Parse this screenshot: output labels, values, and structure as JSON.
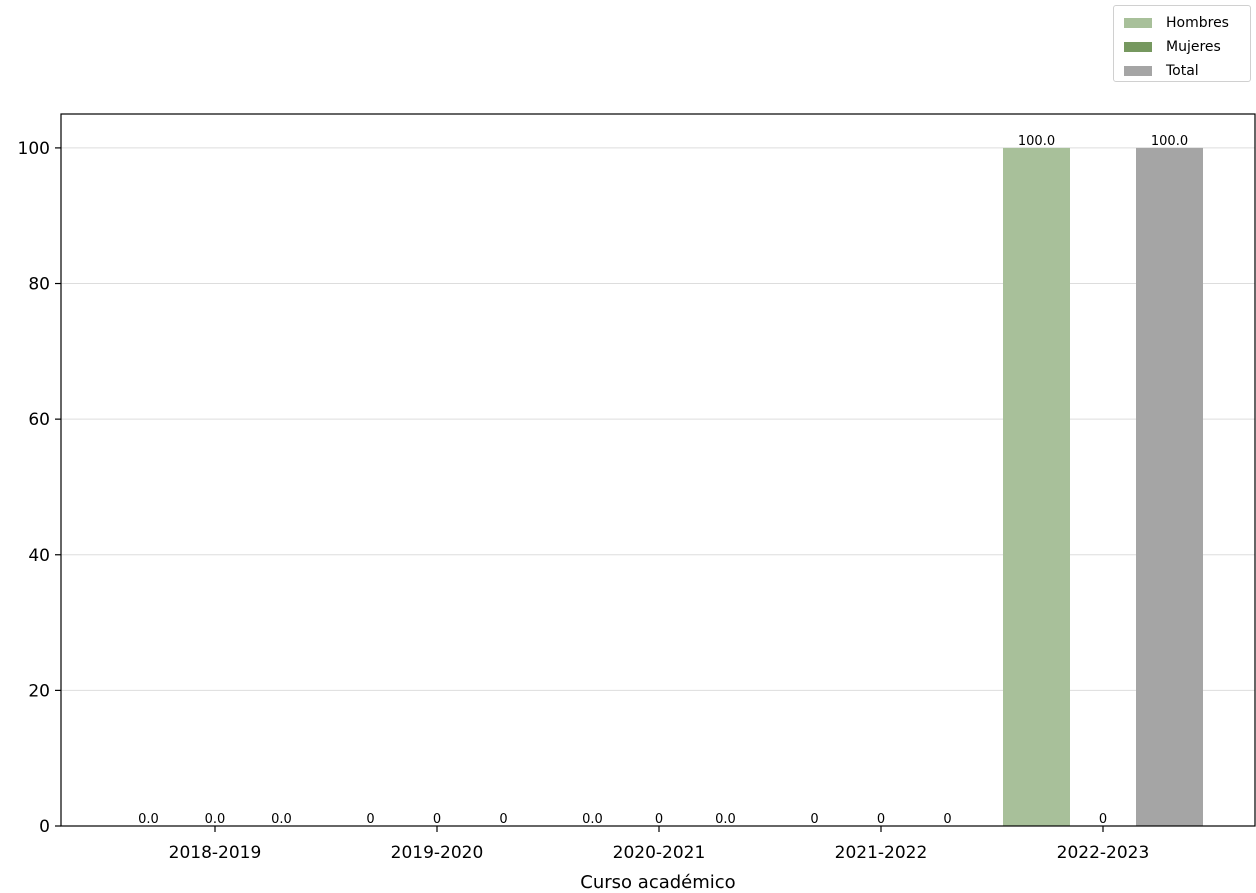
{
  "chart_data": {
    "type": "bar",
    "xlabel": "Curso académico",
    "ylabel": "",
    "ylim": [
      0,
      105
    ],
    "yticks": [
      0,
      20,
      40,
      60,
      80,
      100
    ],
    "grid": "horizontal",
    "legend_position": "top-right",
    "categories": [
      "2018-2019",
      "2019-2020",
      "2020-2021",
      "2021-2022",
      "2022-2023"
    ],
    "series": [
      {
        "name": "Hombres",
        "color": "#a8c09a",
        "values": [
          0,
          0,
          0,
          0,
          100
        ],
        "labels": [
          "0.0",
          "0",
          "0.0",
          "0",
          "100.0"
        ]
      },
      {
        "name": "Mujeres",
        "color": "#76985f",
        "values": [
          0,
          0,
          0,
          0,
          0
        ],
        "labels": [
          "0.0",
          "0",
          "0",
          "0",
          "0"
        ]
      },
      {
        "name": "Total",
        "color": "#a5a5a5",
        "values": [
          0,
          0,
          0,
          0,
          100
        ],
        "labels": [
          "0.0",
          "0",
          "0.0",
          "0",
          "100.0"
        ]
      }
    ]
  }
}
